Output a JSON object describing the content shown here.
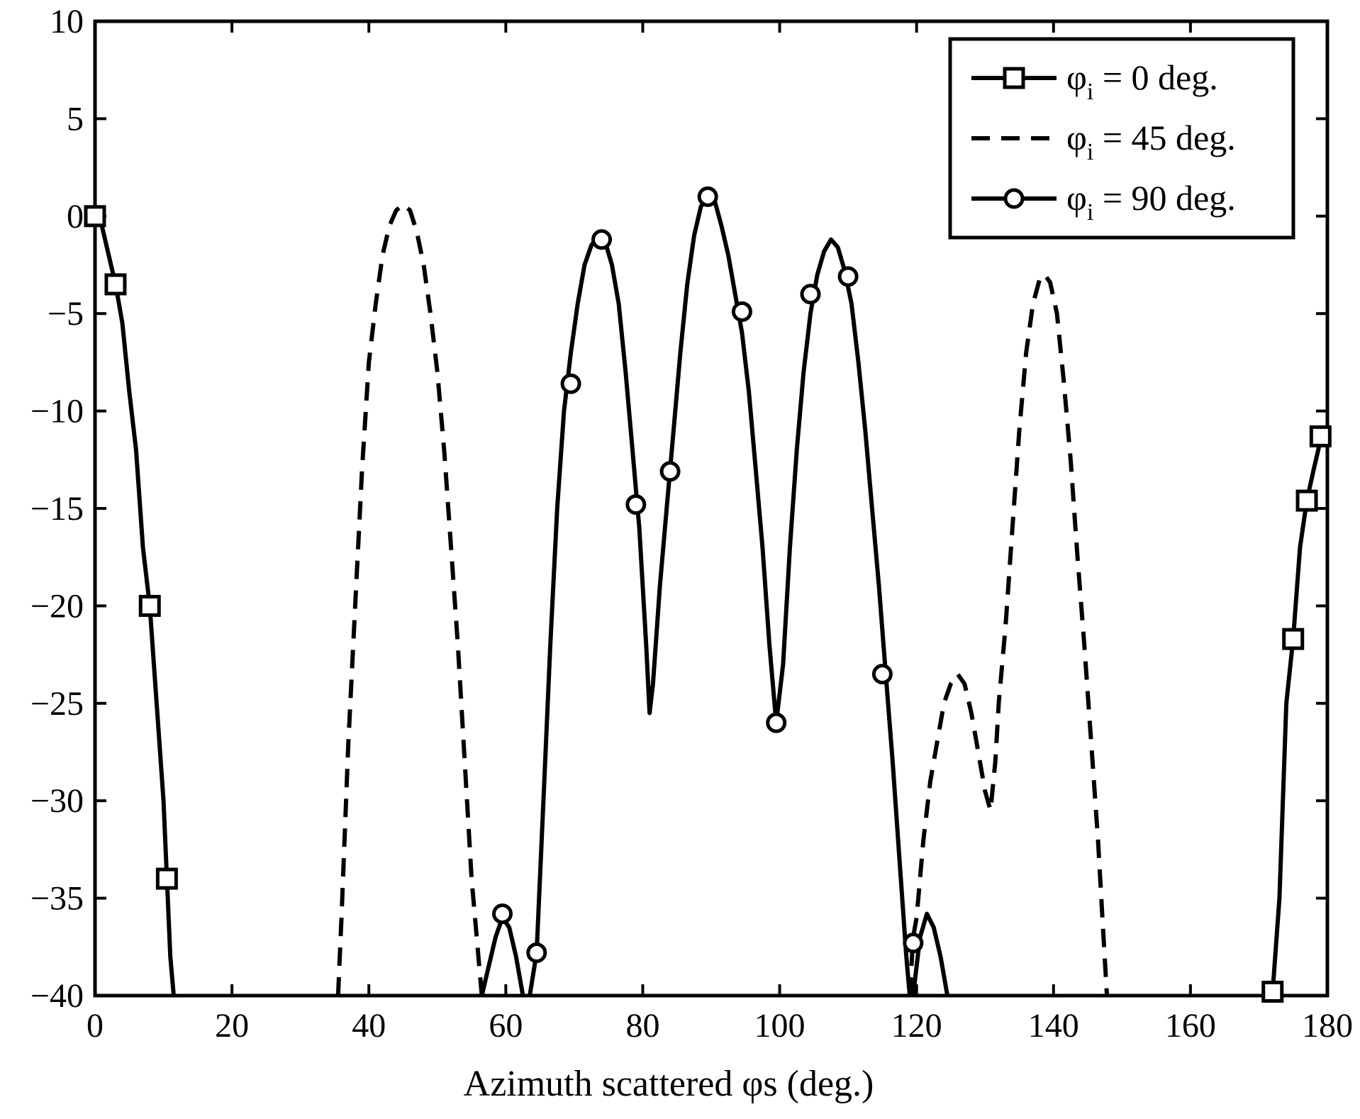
{
  "chart_data": {
    "type": "line",
    "title": "",
    "xlabel": "Azimuth scattered φs (deg.)",
    "ylabel": "",
    "xlim": [
      0,
      180
    ],
    "ylim": [
      -40,
      10
    ],
    "xticks": [
      0,
      20,
      40,
      60,
      80,
      100,
      120,
      140,
      160,
      180
    ],
    "yticks": [
      10,
      5,
      0,
      -5,
      -10,
      -15,
      -20,
      -25,
      -30,
      -35,
      -40
    ],
    "xtick_labels": [
      "0",
      "20",
      "40",
      "60",
      "80",
      "100",
      "120",
      "140",
      "160",
      "180"
    ],
    "ytick_labels": [
      "10",
      "5",
      "0",
      "−5",
      "−10",
      "−15",
      "−20",
      "−25",
      "−30",
      "−35",
      "−40"
    ],
    "grid": false,
    "legend_position": "top-right",
    "legend": [
      {
        "base": "φ",
        "sub": "i",
        "value": " = 0 deg.",
        "marker": "square",
        "dash": "solid"
      },
      {
        "base": "φ",
        "sub": "i",
        "value": " = 45 deg.",
        "marker": "none",
        "dash": "dashed"
      },
      {
        "base": "φ",
        "sub": "i",
        "value": " = 90 deg.",
        "marker": "circle",
        "dash": "solid"
      }
    ],
    "series": [
      {
        "name": "φi = 0 deg.",
        "marker": "square",
        "dash": "solid",
        "segments": [
          [
            [
              0,
              0
            ],
            [
              1,
              -0.5
            ],
            [
              2,
              -2
            ],
            [
              3,
              -3.5
            ],
            [
              4,
              -5.5
            ],
            [
              5,
              -9
            ],
            [
              6,
              -12
            ],
            [
              7,
              -17
            ],
            [
              8,
              -20
            ],
            [
              9,
              -25
            ],
            [
              10,
              -30
            ],
            [
              10.5,
              -34
            ],
            [
              11,
              -38
            ],
            [
              11.5,
              -40
            ]
          ],
          [
            [
              171.5,
              -40
            ],
            [
              172,
              -39.8
            ],
            [
              173,
              -35
            ],
            [
              174,
              -25
            ],
            [
              175,
              -21.7
            ],
            [
              176,
              -17
            ],
            [
              177,
              -14.6
            ],
            [
              178,
              -13
            ],
            [
              179,
              -11.5
            ],
            [
              180,
              -11
            ]
          ]
        ],
        "markers": [
          [
            0,
            0
          ],
          [
            3,
            -3.5
          ],
          [
            8,
            -20
          ],
          [
            10.5,
            -34
          ],
          [
            172,
            -39.8
          ],
          [
            175,
            -21.7
          ],
          [
            177,
            -14.6
          ],
          [
            179,
            -11.3
          ]
        ]
      },
      {
        "name": "φi = 45 deg.",
        "marker": "none",
        "dash": "dashed",
        "segments": [
          [
            [
              35.5,
              -40
            ],
            [
              36,
              -36
            ],
            [
              37,
              -27
            ],
            [
              38,
              -20
            ],
            [
              39,
              -13
            ],
            [
              40,
              -7.5
            ],
            [
              41,
              -4.5
            ],
            [
              42,
              -2
            ],
            [
              43,
              -0.5
            ],
            [
              44,
              0.3
            ],
            [
              45,
              0.6
            ],
            [
              46,
              0.3
            ],
            [
              47,
              -0.8
            ],
            [
              48,
              -2.5
            ],
            [
              49,
              -5
            ],
            [
              50,
              -8
            ],
            [
              51,
              -12
            ],
            [
              52,
              -17
            ],
            [
              53,
              -22
            ],
            [
              54,
              -28
            ],
            [
              55,
              -34
            ],
            [
              56,
              -38
            ],
            [
              56.5,
              -40
            ]
          ],
          [
            [
              119,
              -40
            ],
            [
              119.5,
              -37
            ],
            [
              120,
              -36
            ],
            [
              121,
              -32
            ],
            [
              122,
              -29
            ],
            [
              123,
              -27
            ],
            [
              124,
              -25
            ],
            [
              125,
              -24
            ],
            [
              126,
              -23.5
            ],
            [
              127,
              -24
            ],
            [
              128,
              -25.5
            ],
            [
              129,
              -27.5
            ],
            [
              130,
              -29.5
            ],
            [
              130.8,
              -30.5
            ],
            [
              131.5,
              -28
            ],
            [
              132,
              -25
            ],
            [
              133,
              -21
            ],
            [
              134,
              -16
            ],
            [
              135,
              -11
            ],
            [
              136,
              -7
            ],
            [
              137,
              -4.5
            ],
            [
              138,
              -3.2
            ],
            [
              138.7,
              -3
            ],
            [
              139.5,
              -3.4
            ],
            [
              140.5,
              -5
            ],
            [
              141.5,
              -8.5
            ],
            [
              142.5,
              -12.5
            ],
            [
              143.5,
              -17.5
            ],
            [
              144.5,
              -22
            ],
            [
              145.5,
              -27
            ],
            [
              146.5,
              -32
            ],
            [
              147.3,
              -37
            ],
            [
              147.8,
              -40
            ]
          ]
        ],
        "markers": []
      },
      {
        "name": "φi = 90 deg.",
        "marker": "circle",
        "dash": "solid",
        "segments": [
          [
            [
              56.5,
              -40
            ],
            [
              57.5,
              -38.5
            ],
            [
              58.5,
              -37
            ],
            [
              59.5,
              -36
            ],
            [
              60.5,
              -36.5
            ],
            [
              61.5,
              -38
            ],
            [
              62.5,
              -40
            ]
          ],
          [
            [
              63.5,
              -40
            ],
            [
              64.5,
              -37.8
            ],
            [
              65.5,
              -30
            ],
            [
              66.5,
              -22
            ],
            [
              67.5,
              -15
            ],
            [
              68.5,
              -10
            ],
            [
              69.5,
              -7
            ],
            [
              70.5,
              -4.5
            ],
            [
              71.5,
              -2.5
            ],
            [
              72.5,
              -1.5
            ],
            [
              73.5,
              -1
            ],
            [
              74.5,
              -1.3
            ],
            [
              75.5,
              -2.5
            ],
            [
              76.5,
              -4.5
            ],
            [
              77.5,
              -8
            ],
            [
              78.5,
              -12
            ],
            [
              79.5,
              -16
            ],
            [
              80.5,
              -22
            ],
            [
              81,
              -25.5
            ],
            [
              81.5,
              -24
            ],
            [
              82.5,
              -19
            ],
            [
              83.5,
              -15
            ],
            [
              84.5,
              -11
            ],
            [
              85.5,
              -7
            ],
            [
              86.5,
              -3.5
            ],
            [
              87.5,
              -1
            ],
            [
              88.5,
              0.5
            ],
            [
              89.5,
              1
            ],
            [
              90.5,
              0.8
            ],
            [
              91.5,
              -0.5
            ],
            [
              92.5,
              -2
            ],
            [
              93.5,
              -4
            ],
            [
              94.5,
              -6
            ],
            [
              95.5,
              -9
            ],
            [
              96.5,
              -13
            ],
            [
              97.5,
              -17
            ],
            [
              98.5,
              -22
            ],
            [
              99.5,
              -26
            ],
            [
              100.5,
              -23
            ],
            [
              101.5,
              -17
            ],
            [
              102.5,
              -12
            ],
            [
              103.5,
              -8
            ],
            [
              104.5,
              -5
            ],
            [
              105.5,
              -3
            ],
            [
              106.5,
              -1.8
            ],
            [
              107.5,
              -1.2
            ],
            [
              108.5,
              -1.6
            ],
            [
              109.5,
              -2.8
            ],
            [
              110.5,
              -4.5
            ],
            [
              111.5,
              -7.5
            ],
            [
              112.5,
              -11
            ],
            [
              113.5,
              -15
            ],
            [
              114.5,
              -19
            ],
            [
              115.5,
              -23.5
            ],
            [
              116.5,
              -28
            ],
            [
              117.5,
              -33
            ],
            [
              118.5,
              -38
            ],
            [
              119,
              -40
            ]
          ],
          [
            [
              119.5,
              -40
            ],
            [
              120.5,
              -37
            ],
            [
              121.5,
              -35.8
            ],
            [
              122.5,
              -36.5
            ],
            [
              123.5,
              -38
            ],
            [
              124.5,
              -40
            ]
          ]
        ],
        "markers": [
          [
            59.5,
            -35.8
          ],
          [
            64.5,
            -37.8
          ],
          [
            69.5,
            -8.6
          ],
          [
            74,
            -1.2
          ],
          [
            79,
            -14.8
          ],
          [
            84,
            -13.1
          ],
          [
            89.5,
            1
          ],
          [
            94.5,
            -4.9
          ],
          [
            99.5,
            -26
          ],
          [
            104.5,
            -4
          ],
          [
            110,
            -3.1
          ],
          [
            115,
            -23.5
          ],
          [
            119.5,
            -37.3
          ]
        ]
      }
    ]
  }
}
